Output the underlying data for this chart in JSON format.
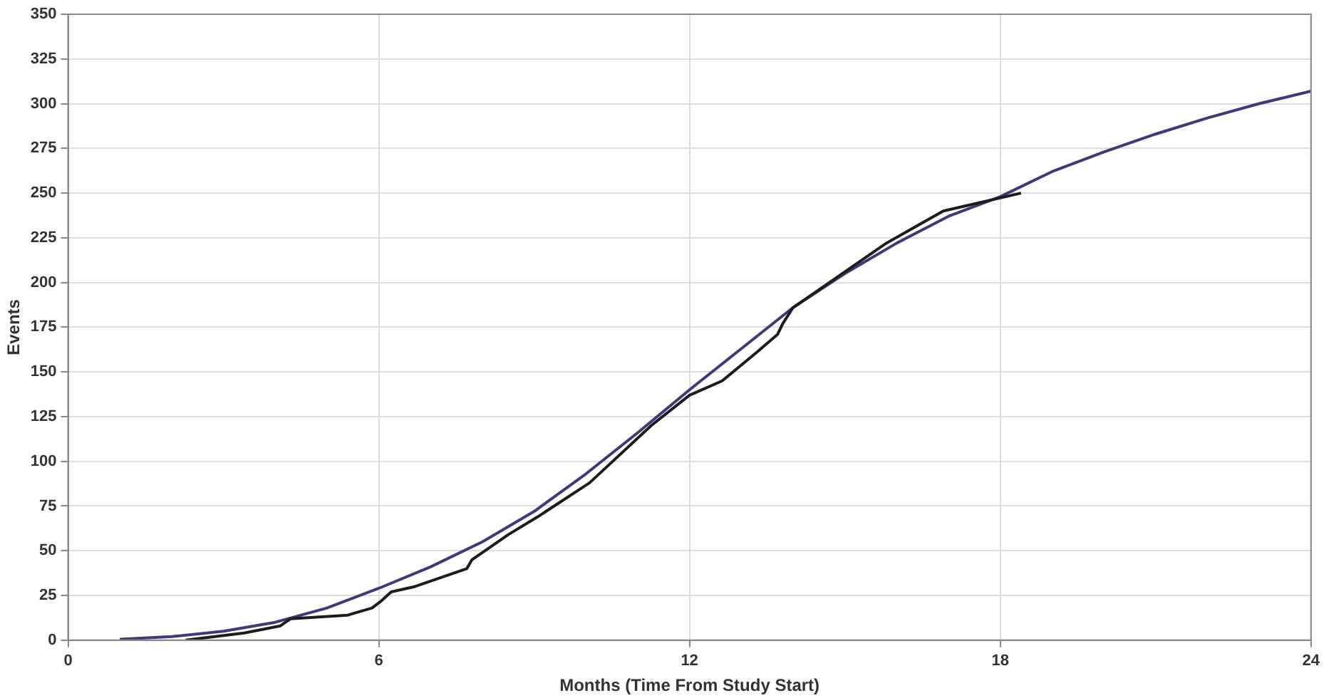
{
  "chart_data": {
    "type": "line",
    "xlabel": "Months (Time From Study Start)",
    "ylabel": "Events",
    "xlim": [
      0,
      24
    ],
    "xticks": [
      0,
      6,
      12,
      18,
      24
    ],
    "ylim": [
      0,
      350
    ],
    "yticks": [
      0,
      25,
      50,
      75,
      100,
      125,
      150,
      175,
      200,
      225,
      250,
      275,
      300,
      325,
      350
    ],
    "grid": true,
    "legend": false,
    "marker": "none",
    "line_style": "solid",
    "series": [
      {
        "color": "#1c1c1c",
        "x": [
          2.27,
          3.4,
          4.1,
          4.3,
          5.4,
          5.87,
          6.05,
          6.24,
          6.7,
          7.2,
          7.7,
          7.8,
          8.5,
          9.07,
          10.07,
          11.26,
          12,
          12.63,
          13.3,
          13.7,
          13.8,
          14,
          15.8,
          16.9,
          18.4
        ],
        "values": [
          0,
          4,
          8,
          12,
          14,
          18,
          22,
          27,
          30,
          35,
          40,
          45,
          59,
          69,
          88,
          120,
          137,
          145,
          161,
          171,
          177,
          186,
          222,
          240,
          250
        ]
      },
      {
        "color": "#3b3b7a",
        "x": [
          1,
          2,
          3,
          4,
          5,
          6,
          7,
          8,
          9,
          10,
          11,
          12,
          13,
          14,
          15,
          16,
          17,
          18,
          19,
          20,
          21,
          22,
          23,
          24
        ],
        "values": [
          0.5,
          2,
          5,
          10,
          18,
          29,
          41,
          55,
          72,
          93,
          116,
          140,
          163,
          186,
          205,
          222,
          237,
          248,
          262,
          273,
          283,
          292,
          300,
          307
        ]
      }
    ]
  }
}
